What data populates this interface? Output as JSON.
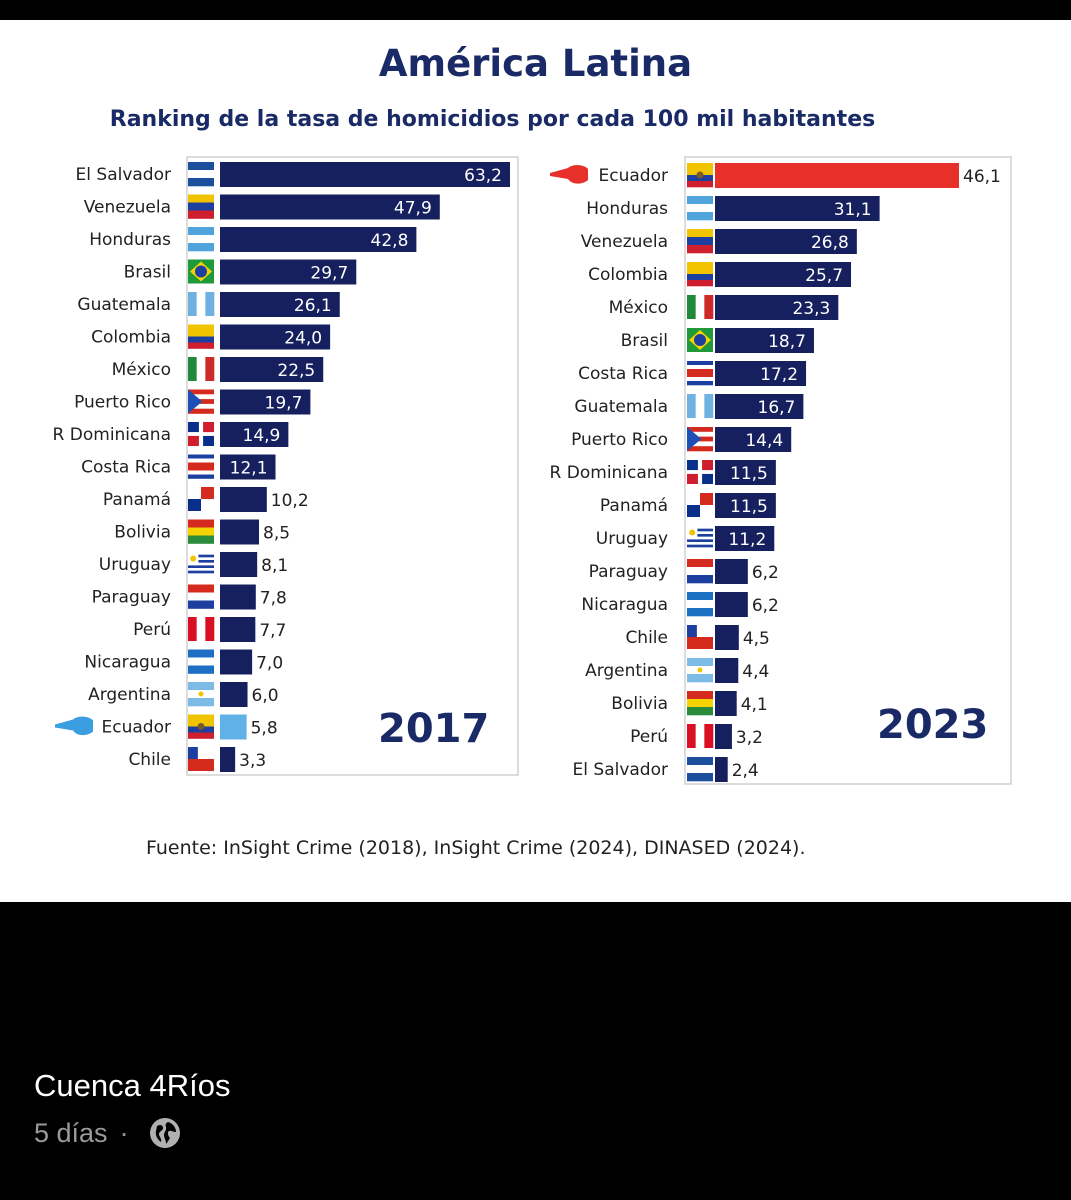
{
  "post": {
    "title": "América Latina",
    "subtitle": "Ranking de la tasa de homicidios por cada 100 mil habitantes",
    "source": "Fuente: InSight Crime (2018), InSight Crime (2024), DINASED (2024).",
    "author": "Cuenca 4Ríos",
    "time": "5 días",
    "separator": "·",
    "audience_icon": "globe-icon"
  },
  "colors": {
    "bar": "#16205e",
    "highlight_2017": "#5fb1e6",
    "highlight_2023": "#e8302a",
    "title": "#1a2a66"
  },
  "chart_data": [
    {
      "type": "bar",
      "orientation": "horizontal",
      "year_label": "2017",
      "categories": [
        "El Salvador",
        "Venezuela",
        "Honduras",
        "Brasil",
        "Guatemala",
        "Colombia",
        "México",
        "Puerto Rico",
        "R Dominicana",
        "Costa Rica",
        "Panamá",
        "Bolivia",
        "Uruguay",
        "Paraguay",
        "Perú",
        "Nicaragua",
        "Argentina",
        "Ecuador",
        "Chile"
      ],
      "values": [
        63.2,
        47.9,
        42.8,
        29.7,
        26.1,
        24.0,
        22.5,
        19.7,
        14.9,
        12.1,
        10.2,
        8.5,
        8.1,
        7.8,
        7.7,
        7.0,
        6.0,
        5.8,
        3.3
      ],
      "labels": [
        "63,2",
        "47,9",
        "42,8",
        "29,7",
        "26,1",
        "24,0",
        "22,5",
        "19,7",
        "14,9",
        "12,1",
        "10,2",
        "8,5",
        "8,1",
        "7,8",
        "7,7",
        "7,0",
        "6,0",
        "5,8",
        "3,3"
      ],
      "highlight": "Ecuador",
      "grid": false
    },
    {
      "type": "bar",
      "orientation": "horizontal",
      "year_label": "2023",
      "categories": [
        "Ecuador",
        "Honduras",
        "Venezuela",
        "Colombia",
        "México",
        "Brasil",
        "Costa Rica",
        "Guatemala",
        "Puerto Rico",
        "R Dominicana",
        "Panamá",
        "Uruguay",
        "Paraguay",
        "Nicaragua",
        "Chile",
        "Argentina",
        "Bolivia",
        "Perú",
        "El Salvador"
      ],
      "values": [
        46.1,
        31.1,
        26.8,
        25.7,
        23.3,
        18.7,
        17.2,
        16.7,
        14.4,
        11.5,
        11.5,
        11.2,
        6.2,
        6.2,
        4.5,
        4.4,
        4.1,
        3.2,
        2.4
      ],
      "labels": [
        "46,1",
        "31,1",
        "26,8",
        "25,7",
        "23,3",
        "18,7",
        "17,2",
        "16,7",
        "14,4",
        "11,5",
        "11,5",
        "11,2",
        "6,2",
        "6,2",
        "4,5",
        "4,4",
        "4,1",
        "3,2",
        "2,4"
      ],
      "highlight": "Ecuador",
      "grid": false
    }
  ]
}
